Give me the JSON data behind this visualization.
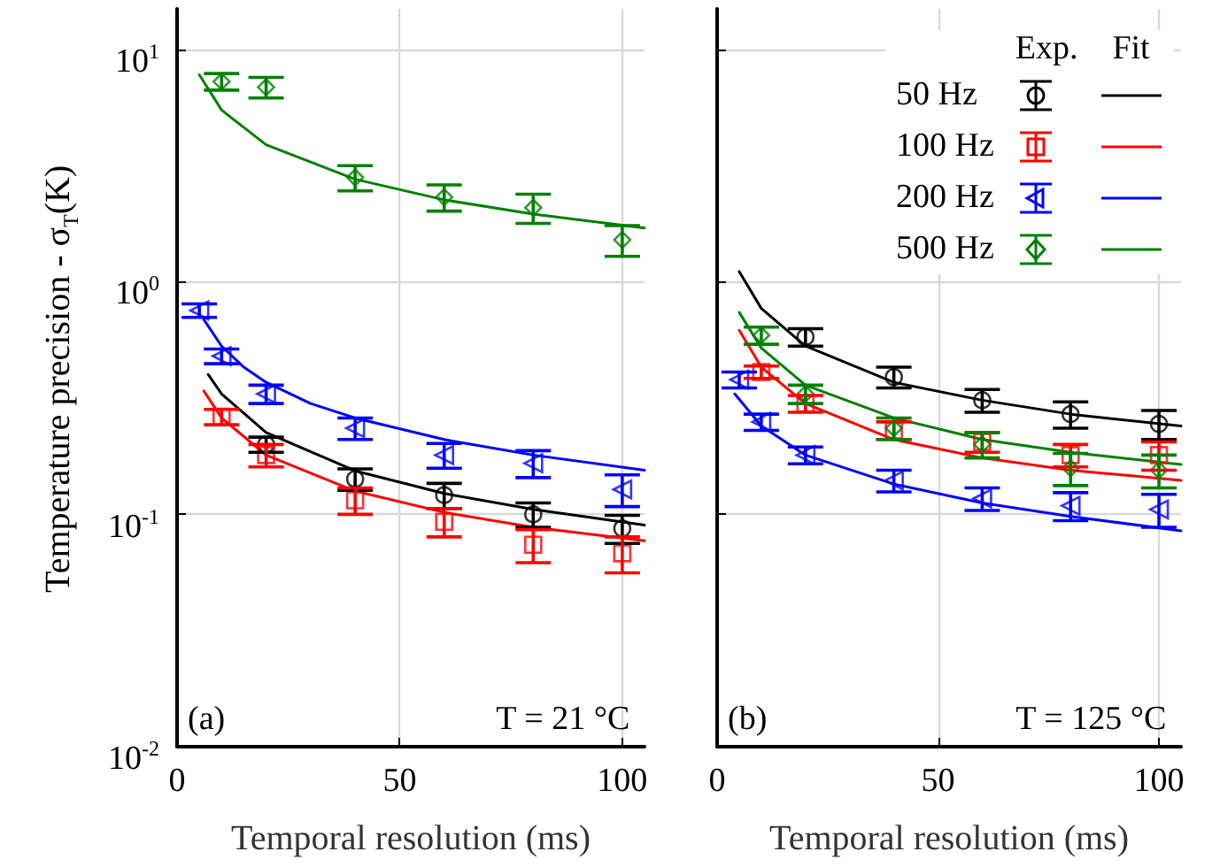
{
  "chart_data": [
    {
      "type": "scatter",
      "xlabel": "Temporal resolution (ms)",
      "ylabel": "Temperature precision - σ$_{T}$(K)",
      "log": "y",
      "xlim": [
        0,
        105
      ],
      "xticks": [
        0,
        50,
        100
      ],
      "ylim": [
        0.01,
        15
      ],
      "yticks": [
        {
          "value": 0.01,
          "label": "10$^{-2}$"
        },
        {
          "value": 0.1,
          "label": "10$^{-1}$"
        },
        {
          "value": 1,
          "label": "10$^{0}$"
        },
        {
          "value": 10,
          "label": "10$^{1}$"
        }
      ],
      "grid": true,
      "legend": false,
      "annotations": [
        "(a)",
        "T = 21 °C"
      ],
      "series": [
        {
          "marker": "circle",
          "color": "#000000",
          "x": [
            20,
            40,
            60,
            80,
            100
          ],
          "values": [
            0.2,
            0.142,
            0.121,
            0.1,
            0.087
          ],
          "errors": [
            0.015,
            0.015,
            0.015,
            0.012,
            0.012
          ]
        },
        {
          "marker": "square",
          "color": "#ff0000",
          "x": [
            10,
            20,
            40,
            60,
            80,
            100
          ],
          "values": [
            0.263,
            0.18,
            0.115,
            0.093,
            0.074,
            0.068
          ],
          "errors": [
            0.02,
            0.02,
            0.015,
            0.013,
            0.012,
            0.012
          ]
        },
        {
          "marker": "triangle",
          "color": "#0000ff",
          "x": [
            5,
            10,
            20,
            40,
            60,
            80,
            100
          ],
          "values": [
            0.755,
            0.48,
            0.33,
            0.235,
            0.18,
            0.166,
            0.128
          ],
          "errors": [
            0.05,
            0.035,
            0.03,
            0.025,
            0.022,
            0.022,
            0.02
          ]
        },
        {
          "marker": "diamond",
          "color": "#008000",
          "x": [
            10,
            20,
            40,
            60,
            80,
            100
          ],
          "values": [
            7.3,
            6.9,
            2.82,
            2.32,
            2.09,
            1.52
          ],
          "errors": [
            0.6,
            0.7,
            0.35,
            0.3,
            0.3,
            0.23
          ]
        },
        {
          "type": "line",
          "marker": "none",
          "color": "#000000",
          "x": [
            7,
            10,
            20,
            40,
            60,
            80,
            105
          ],
          "values": [
            0.4,
            0.33,
            0.225,
            0.154,
            0.123,
            0.105,
            0.09
          ]
        },
        {
          "type": "line",
          "marker": "none",
          "color": "#ff0000",
          "x": [
            6,
            10,
            20,
            40,
            60,
            80,
            105
          ],
          "values": [
            0.34,
            0.26,
            0.18,
            0.126,
            0.102,
            0.088,
            0.077
          ]
        },
        {
          "type": "line",
          "marker": "none",
          "color": "#0000ff",
          "x": [
            6,
            10,
            15,
            20,
            30,
            40,
            60,
            80,
            105
          ],
          "values": [
            0.69,
            0.53,
            0.43,
            0.37,
            0.3,
            0.26,
            0.21,
            0.18,
            0.155
          ]
        },
        {
          "type": "line",
          "marker": "none",
          "color": "#008000",
          "x": [
            5,
            10,
            20,
            40,
            60,
            80,
            105
          ],
          "values": [
            7.8,
            5.5,
            3.9,
            2.77,
            2.26,
            1.96,
            1.71
          ]
        }
      ]
    },
    {
      "type": "scatter",
      "xlabel": "Temporal resolution (ms)",
      "log": "y",
      "xlim": [
        0,
        105
      ],
      "xticks": [
        0,
        50,
        100
      ],
      "ylim": [
        0.01,
        15
      ],
      "yticks": [
        0.01,
        0.1,
        1,
        10
      ],
      "tick_labels": "x",
      "grid": true,
      "legend": "top right",
      "legend_title": "Exp. Fit",
      "annotations": [
        "(b)",
        "T = 125 °C"
      ],
      "series": [
        {
          "name": "50 Hz",
          "marker": "circle",
          "color": "#000000",
          "x": [
            20,
            40,
            60,
            80,
            100
          ],
          "values": [
            0.58,
            0.39,
            0.31,
            0.27,
            0.245
          ],
          "errors": [
            0.05,
            0.04,
            0.035,
            0.035,
            0.035
          ]
        },
        {
          "name": "100 Hz",
          "marker": "square",
          "color": "#ff0000",
          "x": [
            10,
            20,
            40,
            60,
            80,
            100
          ],
          "values": [
            0.41,
            0.3,
            0.23,
            0.205,
            0.18,
            0.18
          ],
          "errors": [
            0.025,
            0.025,
            0.02,
            0.02,
            0.02,
            0.025
          ]
        },
        {
          "name": "200 Hz",
          "marker": "triangle",
          "color": "#0000ff",
          "x": [
            5,
            10,
            20,
            40,
            60,
            80,
            100
          ],
          "values": [
            0.38,
            0.25,
            0.18,
            0.14,
            0.117,
            0.109,
            0.105
          ],
          "errors": [
            0.03,
            0.02,
            0.015,
            0.015,
            0.013,
            0.015,
            0.017
          ]
        },
        {
          "name": "500 Hz",
          "marker": "diamond",
          "color": "#008000",
          "x": [
            10,
            20,
            40,
            60,
            80,
            100
          ],
          "values": [
            0.59,
            0.33,
            0.235,
            0.2,
            0.158,
            0.155
          ],
          "errors": [
            0.05,
            0.03,
            0.025,
            0.025,
            0.025,
            0.025
          ]
        },
        {
          "type": "line",
          "marker": "none",
          "color": "#000000",
          "x": [
            5,
            10,
            20,
            40,
            60,
            80,
            105
          ],
          "values": [
            1.11,
            0.77,
            0.53,
            0.37,
            0.31,
            0.27,
            0.24
          ]
        },
        {
          "type": "line",
          "marker": "none",
          "color": "#ff0000",
          "x": [
            5,
            10,
            20,
            40,
            60,
            80,
            105
          ],
          "values": [
            0.62,
            0.43,
            0.3,
            0.21,
            0.175,
            0.155,
            0.14
          ]
        },
        {
          "type": "line",
          "marker": "none",
          "color": "#0000ff",
          "x": [
            4,
            10,
            20,
            40,
            60,
            80,
            105
          ],
          "values": [
            0.33,
            0.24,
            0.18,
            0.135,
            0.112,
            0.098,
            0.085
          ]
        },
        {
          "type": "line",
          "marker": "none",
          "color": "#008000",
          "x": [
            5,
            10,
            20,
            40,
            60,
            80,
            105
          ],
          "values": [
            0.74,
            0.52,
            0.36,
            0.26,
            0.21,
            0.185,
            0.164
          ]
        }
      ]
    }
  ]
}
